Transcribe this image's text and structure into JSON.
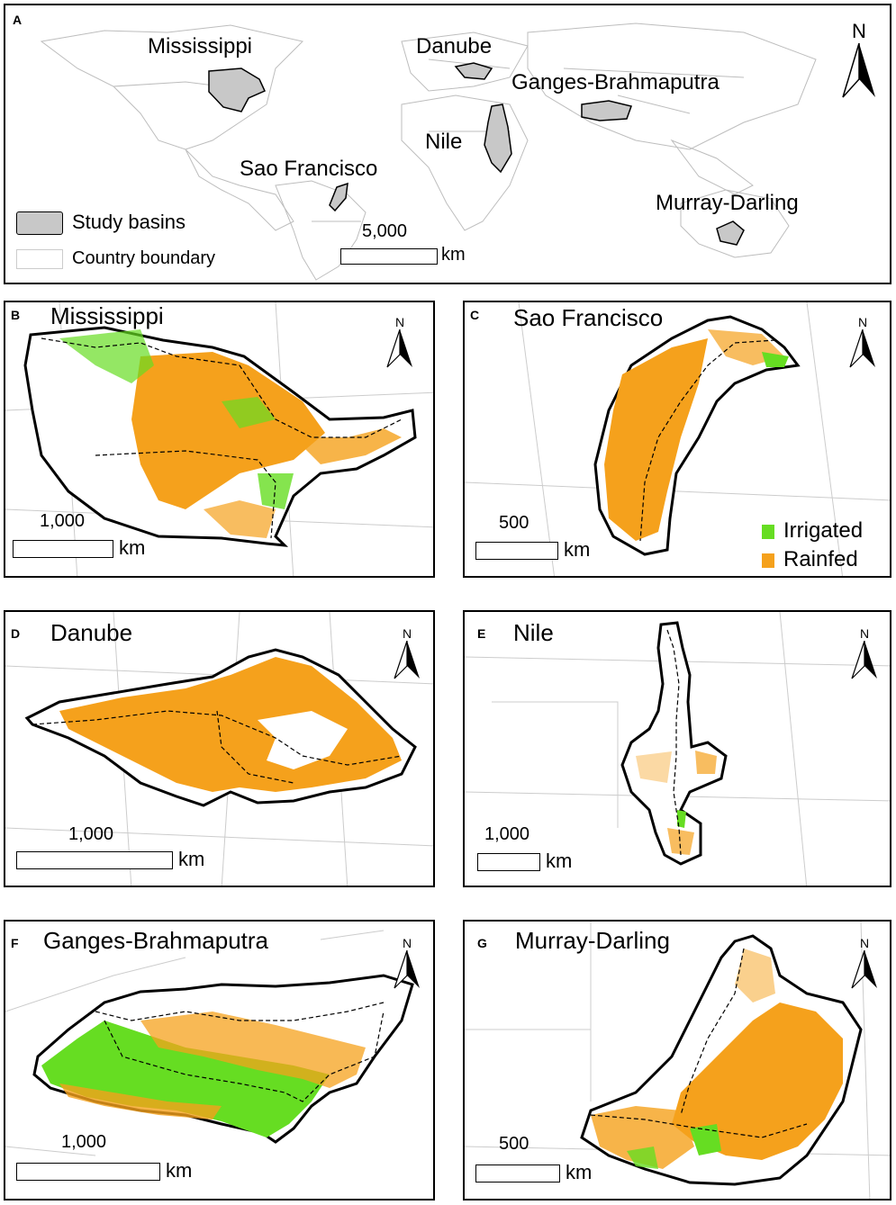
{
  "north_symbol": "N",
  "km_unit": "km",
  "panel_a": {
    "label": "A",
    "basins": [
      "Mississippi",
      "Danube",
      "Ganges-Brahmaputra",
      "Nile",
      "Sao Francisco",
      "Murray-Darling"
    ],
    "legend": {
      "study_basins": "Study basins",
      "country_boundary": "Country boundary"
    },
    "scale_value": "5,000"
  },
  "panels": [
    {
      "label": "B",
      "title": "Mississippi",
      "scale_value": "1,000"
    },
    {
      "label": "C",
      "title": "Sao Francisco",
      "scale_value": "500"
    },
    {
      "label": "D",
      "title": "Danube",
      "scale_value": "1,000"
    },
    {
      "label": "E",
      "title": "Nile",
      "scale_value": "1,000"
    },
    {
      "label": "F",
      "title": "Ganges-Brahmaputra",
      "scale_value": "1,000"
    },
    {
      "label": "G",
      "title": "Murray-Darling",
      "scale_value": "500"
    }
  ],
  "landuse_legend": {
    "irrigated": "Irrigated",
    "rainfed": "Rainfed"
  },
  "colors": {
    "irrigated": "#66dd22",
    "rainfed": "#f5a11c",
    "basin_fill": "#c8c8c8",
    "boundary": "#bbbbbb"
  }
}
